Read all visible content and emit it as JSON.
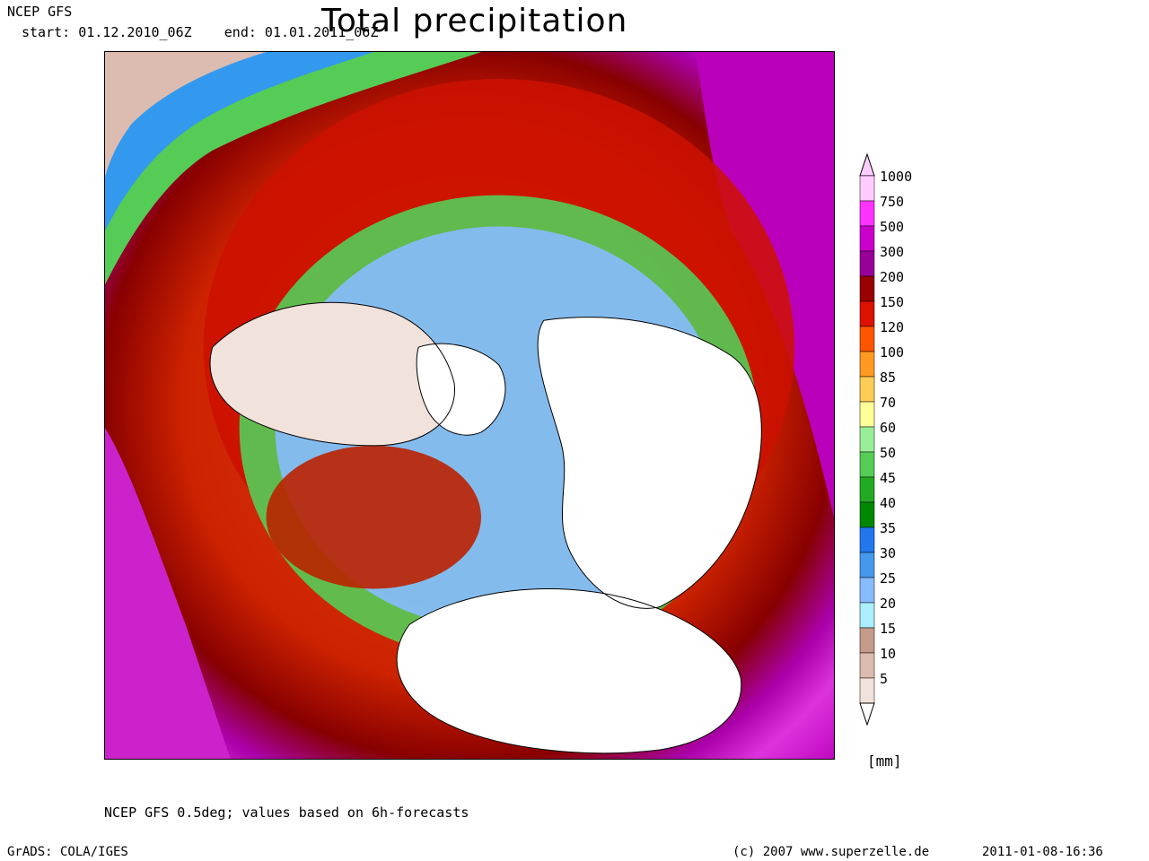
{
  "header": {
    "model": "NCEP GFS",
    "period": "start: 01.12.2010_06Z    end: 01.01.2011_06Z",
    "title": "Total precipitation"
  },
  "legend": {
    "unit": "[mm]",
    "levels": [
      {
        "label": "1000",
        "color": "#ffccff"
      },
      {
        "label": "750",
        "color": "#ff33ff"
      },
      {
        "label": "500",
        "color": "#cc00cc"
      },
      {
        "label": "300",
        "color": "#990099"
      },
      {
        "label": "200",
        "color": "#990000"
      },
      {
        "label": "150",
        "color": "#dd1100"
      },
      {
        "label": "120",
        "color": "#ff5500"
      },
      {
        "label": "100",
        "color": "#ff9922"
      },
      {
        "label": "85",
        "color": "#ffcc55"
      },
      {
        "label": "70",
        "color": "#ffff99"
      },
      {
        "label": "60",
        "color": "#99ee99"
      },
      {
        "label": "50",
        "color": "#55cc55"
      },
      {
        "label": "45",
        "color": "#22aa22"
      },
      {
        "label": "40",
        "color": "#008800"
      },
      {
        "label": "35",
        "color": "#2277ee"
      },
      {
        "label": "30",
        "color": "#4499ee"
      },
      {
        "label": "25",
        "color": "#88bbff"
      },
      {
        "label": "20",
        "color": "#aaeeff"
      },
      {
        "label": "15",
        "color": "#c49a8a"
      },
      {
        "label": "10",
        "color": "#dcbcb0"
      },
      {
        "label": "5",
        "color": "#f2e2dc"
      }
    ],
    "below_color": "#ffffff"
  },
  "footer": {
    "note": "NCEP GFS 0.5deg; values based on 6h-forecasts",
    "grads": "GrADS: COLA/IGES",
    "copyright": "(c) 2007 www.superzelle.de",
    "timestamp": "2011-01-08-16:36"
  }
}
